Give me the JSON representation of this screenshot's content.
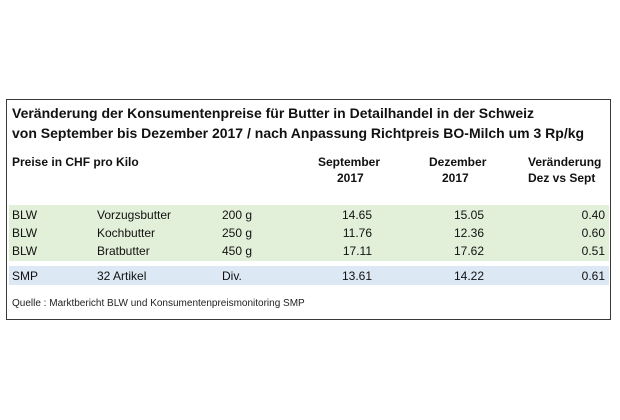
{
  "title": {
    "line1": "Veränderung der Konsumentenpreise für Butter in Detailhandel in der Schweiz",
    "line2": "von September bis Dezember 2017 / nach Anpassung Richtpreis BO-Milch um 3 Rp/kg"
  },
  "header": {
    "unit_label": "Preise in CHF pro Kilo",
    "col_sep_line1": "September",
    "col_sep_line2": "2017",
    "col_dez_line1": "Dezember",
    "col_dez_line2": "2017",
    "col_change_line1": "Veränderung",
    "col_change_line2": "Dez vs Sept"
  },
  "rows": [
    {
      "source": "BLW",
      "product": "Vorzugsbutter",
      "size": "200 g",
      "september": "14.65",
      "dezember": "15.05",
      "change": "0.40"
    },
    {
      "source": "BLW",
      "product": "Kochbutter",
      "size": "250 g",
      "september": "11.76",
      "dezember": "12.36",
      "change": "0.60"
    },
    {
      "source": "BLW",
      "product": "Bratbutter",
      "size": "450 g",
      "september": "17.11",
      "dezember": "17.62",
      "change": "0.51"
    },
    {
      "source": "SMP",
      "product": "32 Artikel",
      "size": "Div.",
      "september": "13.61",
      "dezember": "14.22",
      "change": "0.61"
    }
  ],
  "footer": {
    "source_note": "Quelle : Marktbericht BLW und Konsumentenpreismonitoring SMP"
  },
  "colors": {
    "blw_band": "#e2efd9",
    "smp_band": "#dce8f4",
    "border": "#3a3a3a"
  }
}
